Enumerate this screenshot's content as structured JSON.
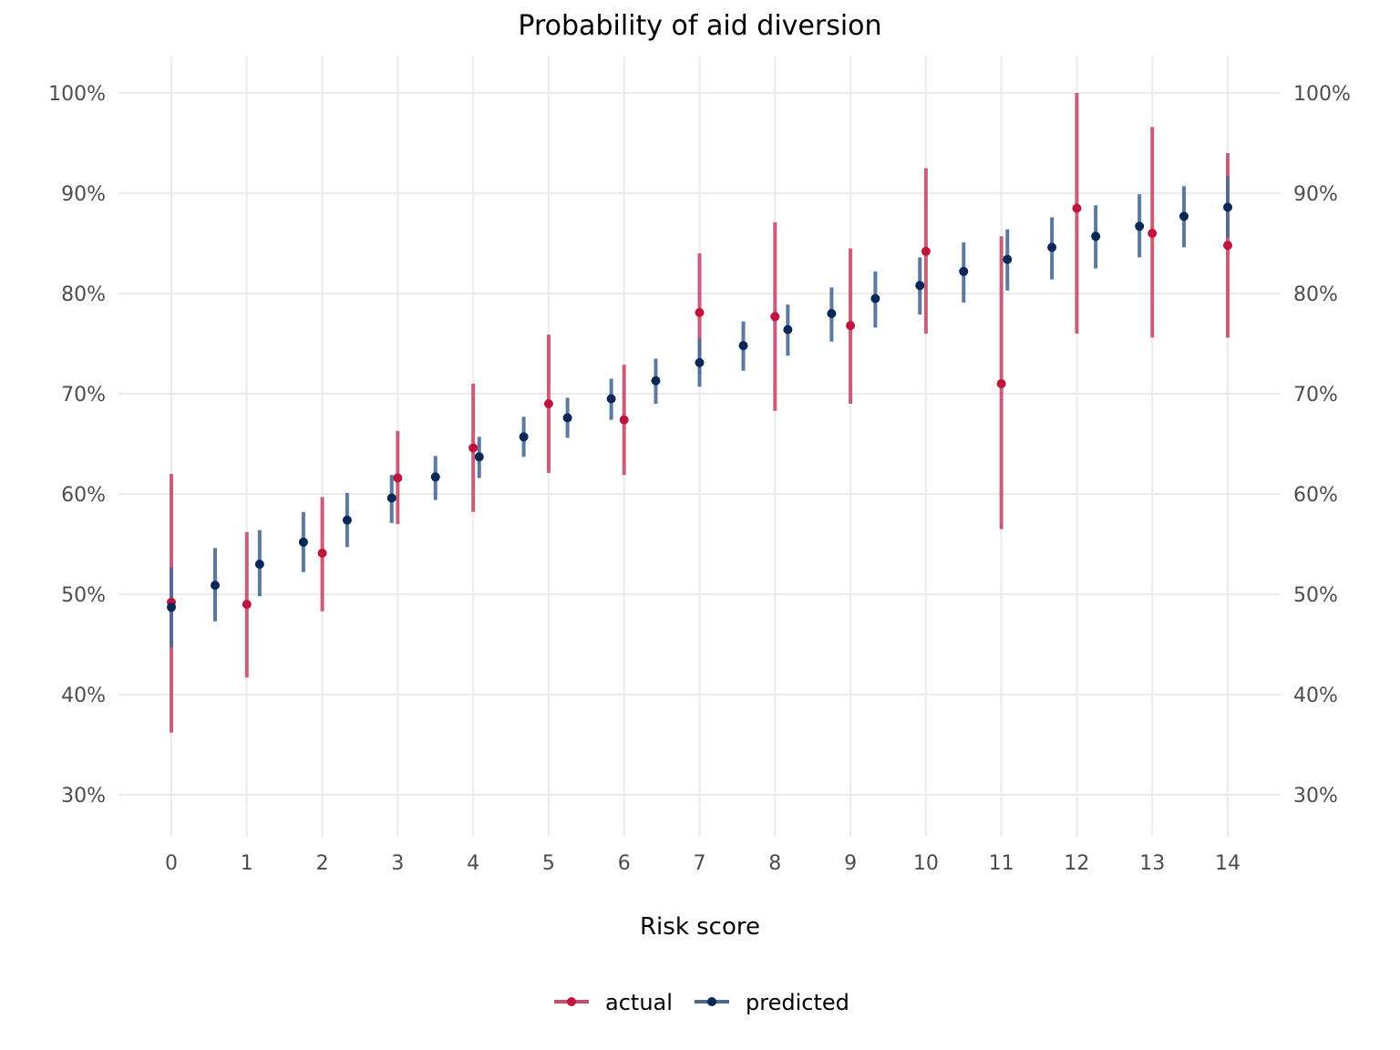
{
  "chart_data": {
    "type": "scatter",
    "title": "Probability of aid diversion",
    "xlabel": "Risk score",
    "ylabel": "",
    "xlim": [
      -0.7,
      14.7
    ],
    "ylim": [
      0.26,
      1.04
    ],
    "x_ticks": [
      0,
      1,
      2,
      3,
      4,
      5,
      6,
      7,
      8,
      9,
      10,
      11,
      12,
      13,
      14
    ],
    "x_tick_labels": [
      "0",
      "1",
      "2",
      "3",
      "4",
      "5",
      "6",
      "7",
      "8",
      "9",
      "10",
      "11",
      "12",
      "13",
      "14"
    ],
    "y_ticks": [
      0.3,
      0.4,
      0.5,
      0.6,
      0.7,
      0.8,
      0.9,
      1.0
    ],
    "y_tick_labels": [
      "30%",
      "40%",
      "50%",
      "60%",
      "70%",
      "80%",
      "90%",
      "100%"
    ],
    "grid": true,
    "legend_position": "bottom",
    "series": [
      {
        "name": "actual",
        "color": "#c0143c",
        "bar_color": "#c84b6a",
        "points": [
          {
            "x": 0,
            "y": 0.492,
            "low": 0.362,
            "high": 0.62
          },
          {
            "x": 1,
            "y": 0.49,
            "low": 0.417,
            "high": 0.562
          },
          {
            "x": 2,
            "y": 0.541,
            "low": 0.483,
            "high": 0.597
          },
          {
            "x": 3,
            "y": 0.616,
            "low": 0.57,
            "high": 0.663
          },
          {
            "x": 4,
            "y": 0.646,
            "low": 0.582,
            "high": 0.71
          },
          {
            "x": 5,
            "y": 0.69,
            "low": 0.621,
            "high": 0.759
          },
          {
            "x": 6,
            "y": 0.674,
            "low": 0.619,
            "high": 0.729
          },
          {
            "x": 7,
            "y": 0.781,
            "low": 0.72,
            "high": 0.84
          },
          {
            "x": 8,
            "y": 0.777,
            "low": 0.683,
            "high": 0.871
          },
          {
            "x": 9,
            "y": 0.768,
            "low": 0.69,
            "high": 0.845
          },
          {
            "x": 10,
            "y": 0.842,
            "low": 0.76,
            "high": 0.925
          },
          {
            "x": 11,
            "y": 0.71,
            "low": 0.565,
            "high": 0.857
          },
          {
            "x": 12,
            "y": 0.885,
            "low": 0.76,
            "high": 1.0
          },
          {
            "x": 13,
            "y": 0.86,
            "low": 0.756,
            "high": 0.966
          },
          {
            "x": 14,
            "y": 0.848,
            "low": 0.756,
            "high": 0.94
          }
        ]
      },
      {
        "name": "predicted",
        "color": "#08285a",
        "bar_color": "#4a6a96",
        "points": [
          {
            "x": 0.0,
            "y": 0.487,
            "low": 0.447,
            "high": 0.527
          },
          {
            "x": 0.58,
            "y": 0.509,
            "low": 0.473,
            "high": 0.546
          },
          {
            "x": 1.17,
            "y": 0.53,
            "low": 0.498,
            "high": 0.564
          },
          {
            "x": 1.75,
            "y": 0.552,
            "low": 0.522,
            "high": 0.582
          },
          {
            "x": 2.33,
            "y": 0.574,
            "low": 0.547,
            "high": 0.601
          },
          {
            "x": 2.92,
            "y": 0.596,
            "low": 0.571,
            "high": 0.619
          },
          {
            "x": 3.5,
            "y": 0.617,
            "low": 0.594,
            "high": 0.638
          },
          {
            "x": 4.08,
            "y": 0.637,
            "low": 0.616,
            "high": 0.657
          },
          {
            "x": 4.67,
            "y": 0.657,
            "low": 0.637,
            "high": 0.677
          },
          {
            "x": 5.25,
            "y": 0.676,
            "low": 0.656,
            "high": 0.696
          },
          {
            "x": 5.83,
            "y": 0.695,
            "low": 0.674,
            "high": 0.715
          },
          {
            "x": 6.42,
            "y": 0.713,
            "low": 0.69,
            "high": 0.735
          },
          {
            "x": 7.0,
            "y": 0.731,
            "low": 0.707,
            "high": 0.755
          },
          {
            "x": 7.58,
            "y": 0.748,
            "low": 0.723,
            "high": 0.772
          },
          {
            "x": 8.17,
            "y": 0.764,
            "low": 0.738,
            "high": 0.789
          },
          {
            "x": 8.75,
            "y": 0.78,
            "low": 0.752,
            "high": 0.806
          },
          {
            "x": 9.33,
            "y": 0.795,
            "low": 0.766,
            "high": 0.822
          },
          {
            "x": 9.92,
            "y": 0.808,
            "low": 0.779,
            "high": 0.836
          },
          {
            "x": 10.5,
            "y": 0.822,
            "low": 0.791,
            "high": 0.851
          },
          {
            "x": 11.08,
            "y": 0.834,
            "low": 0.803,
            "high": 0.864
          },
          {
            "x": 11.67,
            "y": 0.846,
            "low": 0.814,
            "high": 0.876
          },
          {
            "x": 12.25,
            "y": 0.857,
            "low": 0.825,
            "high": 0.888
          },
          {
            "x": 12.83,
            "y": 0.867,
            "low": 0.836,
            "high": 0.899
          },
          {
            "x": 13.42,
            "y": 0.877,
            "low": 0.846,
            "high": 0.907
          },
          {
            "x": 14.0,
            "y": 0.886,
            "low": 0.856,
            "high": 0.917
          }
        ]
      }
    ],
    "legend": [
      {
        "label": "actual",
        "color": "#c0143c",
        "bar_color": "#c84b6a"
      },
      {
        "label": "predicted",
        "color": "#08285a",
        "bar_color": "#4a6a96"
      }
    ]
  }
}
